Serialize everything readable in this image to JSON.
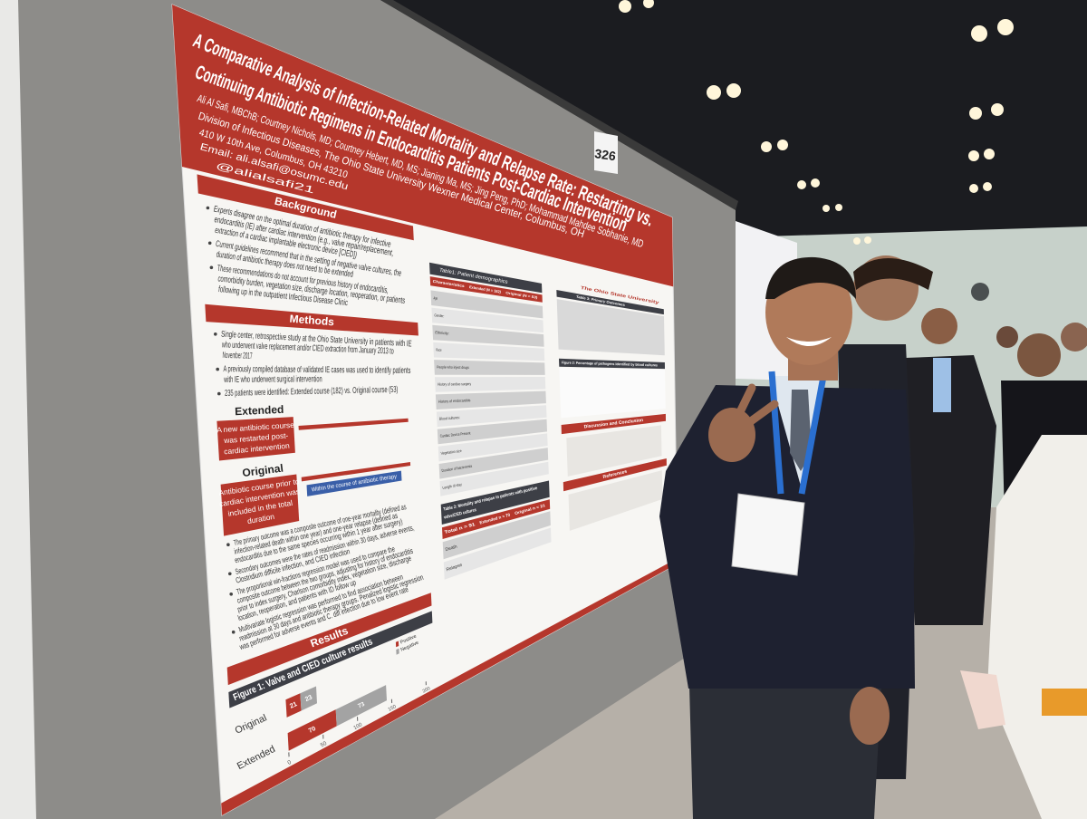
{
  "board_number": "326",
  "poster": {
    "title_lines": [
      "A Comparative Analysis of Infection-Related Mortality and Relapse Rate: Restarting vs.",
      "Continuing Antibiotic Regimens in Endocarditis Patients Post-Cardiac Intervention"
    ],
    "authors": "Ali Al Safi, MBChB; Courtney Nichols, MD; Courtney Hebert, MD, MS; Jianing Ma, MS; Jing Peng, PhD; Mohammad Mahdee Sobhanie, MD",
    "affiliation": "Division of Infectious Diseases, The Ohio State University Wexner Medical Center, Columbus, OH",
    "address": "410 W 10th Ave, Columbus, OH 43210",
    "email": "Email: ali.alsafi@osumc.edu",
    "handle": "@alialsafi21",
    "logo": "The Ohio State University",
    "background": {
      "heading": "Background",
      "bullets": [
        [
          "Experts disagree on the optimal duration of antibiotic therapy for infective",
          "endocarditis (IE) after cardiac intervention (e.g., valve repair/replacement,",
          "extraction of a cardiac implantable electronic device [CIED])"
        ],
        [
          "Current guidelines recommend that in the setting of negative valve cultures, the",
          "duration of antibiotic therapy does not need to be extended"
        ],
        [
          "These recommendations do not account for previous history of endocarditis,",
          "comorbidity burden, vegetation size, discharge location, reoperation, or patients",
          "following up in the outpatient Infectious Disease Clinic"
        ]
      ]
    },
    "methods": {
      "heading": "Methods",
      "bullets": [
        [
          "Single center, retrospective study at the Ohio State University in patients with IE",
          "who underwent valve replacement and/or CIED extraction from January 2013 to",
          "November 2017"
        ],
        [
          "A previously compiled database of validated IE cases was used to identify patients",
          "with IE who underwent surgical intervention"
        ],
        [
          "235 patients were identified: Extended course (182) vs. Original course (53)"
        ]
      ],
      "extended": {
        "label": "Extended",
        "box": [
          "A new antibiotic course",
          "was restarted post-",
          "cardiac intervention"
        ]
      },
      "original": {
        "label": "Original",
        "box": [
          "Antibiotic course prior to",
          "cardiac intervention was",
          "included in the total",
          "duration"
        ]
      },
      "arrow_note": "Within the course of antibiotic therapy"
    },
    "outcomes": {
      "bullets": [
        [
          "The primary outcome was a composite outcome of one-year mortality (defined as",
          "infection-related death within one year) and one-year relapse (defined as",
          "endocarditis due to the same species occurring within 1 year after surgery)"
        ],
        [
          "Secondary outcomes were the rates of readmission within 30 days, adverse events,",
          "Clostridium difficile infection, and CIED infection"
        ],
        [
          "The proportional win-fractions regression model was used to compare the",
          "composite outcome between the two groups, adjusting for history of endocarditis",
          "prior to index surgery, Charlson comorbidity index, vegetation size, discharge",
          "location, reoperation, and patients with ID follow up"
        ],
        [
          "Multivariate logistic regression was performed to find association between",
          "readmission at 30 days and antibiotic therapy groups. Penalized logistic regression",
          "was performed for adverse events and C. diff infection due to low event rate"
        ]
      ]
    },
    "results": {
      "heading": "Results"
    },
    "figure1": {
      "title": "Figure 1: Valve and CIED culture results",
      "categories": [
        "Original",
        "Extended"
      ],
      "series": [
        {
          "name": "Positive",
          "color": "#b5372c",
          "values": [
            21,
            70
          ]
        },
        {
          "name": "Negative",
          "color": "#a3a3a3",
          "values": [
            23,
            73
          ]
        }
      ],
      "xlim": [
        0,
        200
      ],
      "xticks": [
        0,
        50,
        100,
        150,
        200
      ]
    },
    "table1": {
      "title": "Table1: Patient demographics",
      "columns": [
        "Characteristics",
        "Extended (N = 182)",
        "Original (N = 53)"
      ],
      "rows": [
        "Age",
        "Gender:",
        "Ethnicity:",
        "Race",
        "People who inject drugs",
        "History of cardiac surgery",
        "History of endocarditis",
        "Blood cultures:",
        "Cardiac Device Present",
        "Vegetation size",
        "Duration of bacteremia",
        "Length of stay"
      ]
    },
    "table2": {
      "title_lines": [
        "Table 2: Mortality and relapse in patients with positive",
        "valve/CIED cultures"
      ],
      "columns": [
        "Total n = 91",
        "Extended n = 70",
        "Original n = 21"
      ],
      "rows": [
        "Death",
        "Relapse"
      ]
    },
    "table3": {
      "title": "Table 3: Primary Outcomes"
    },
    "figure2": {
      "title": "Figure 2: Percentage of pathogens identified by blood cultures"
    },
    "discussion": {
      "heading": "Discussion and Conclusion"
    },
    "references": {
      "heading": "References"
    }
  }
}
